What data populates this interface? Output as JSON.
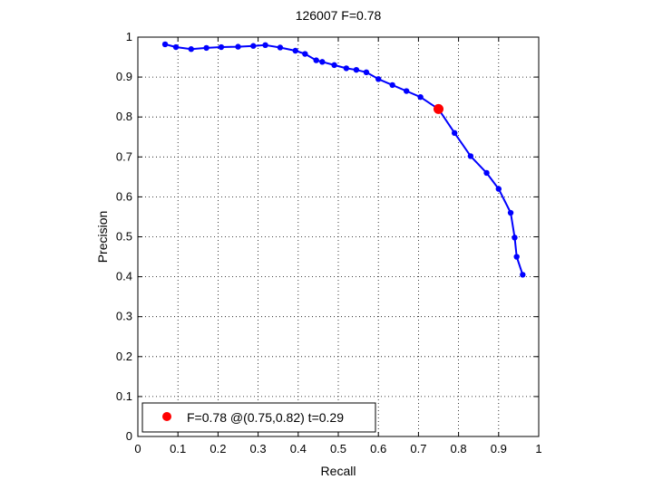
{
  "chart_data": {
    "type": "line",
    "title": "126007 F=0.78",
    "xlabel": "Recall",
    "ylabel": "Precision",
    "xlim": [
      0,
      1
    ],
    "ylim": [
      0,
      1
    ],
    "xticks": [
      0,
      0.1,
      0.2,
      0.3,
      0.4,
      0.5,
      0.6,
      0.7,
      0.8,
      0.9,
      1
    ],
    "yticks": [
      0,
      0.1,
      0.2,
      0.3,
      0.4,
      0.5,
      0.6,
      0.7,
      0.8,
      0.9,
      1
    ],
    "xtick_labels": [
      "0",
      "0.1",
      "0.2",
      "0.3",
      "0.4",
      "0.5",
      "0.6",
      "0.7",
      "0.8",
      "0.9",
      "1"
    ],
    "ytick_labels": [
      "0",
      "0.1",
      "0.2",
      "0.3",
      "0.4",
      "0.5",
      "0.6",
      "0.7",
      "0.8",
      "0.9",
      "1"
    ],
    "grid": true,
    "grid_style": "dotted",
    "legend_position": "bottom-left",
    "series": [
      {
        "color": "#0000ff",
        "marker": "dot",
        "x": [
          0.068,
          0.095,
          0.133,
          0.171,
          0.208,
          0.25,
          0.288,
          0.318,
          0.355,
          0.393,
          0.417,
          0.445,
          0.46,
          0.49,
          0.52,
          0.545,
          0.57,
          0.6,
          0.635,
          0.67,
          0.705,
          0.75,
          0.79,
          0.83,
          0.87,
          0.9,
          0.93,
          0.94,
          0.945,
          0.96
        ],
        "y": [
          0.982,
          0.975,
          0.97,
          0.973,
          0.975,
          0.976,
          0.978,
          0.98,
          0.974,
          0.966,
          0.958,
          0.942,
          0.938,
          0.93,
          0.922,
          0.918,
          0.912,
          0.895,
          0.88,
          0.865,
          0.85,
          0.82,
          0.76,
          0.702,
          0.66,
          0.62,
          0.56,
          0.498,
          0.45,
          0.405
        ]
      }
    ],
    "highlight": {
      "x": 0.75,
      "y": 0.82,
      "color": "#ff0000",
      "legend": "F=0.78 @(0.75,0.82) t=0.29"
    }
  }
}
